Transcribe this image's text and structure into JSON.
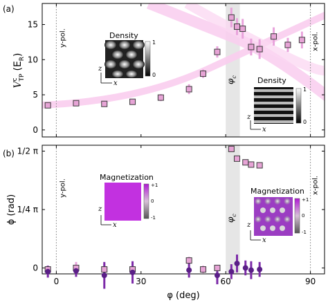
{
  "chart_data": [
    {
      "type": "scatter",
      "panel_label": "(a)",
      "xlim": [
        -5,
        95
      ],
      "ylim": [
        -1,
        18
      ],
      "yticks": [
        0,
        5,
        10,
        15
      ],
      "ylabel": "V",
      "ylabel_sup": "c",
      "ylabel_sub": "TP",
      "ylabel_unit_pre": "(E",
      "ylabel_unit_sub": "R",
      "ylabel_unit_post": ")",
      "vlines": [
        {
          "x": 0,
          "label": "y-pol."
        },
        {
          "x": 90,
          "label": "x-pol."
        }
      ],
      "critical_band": {
        "x0": 60,
        "x1": 65,
        "label": "φ",
        "label_sub": "c"
      },
      "series": [
        {
          "marker": "square",
          "x": [
            -3,
            7,
            17,
            27,
            37,
            47,
            52,
            57,
            62,
            64,
            66,
            69,
            72,
            77,
            82,
            87
          ],
          "y": [
            3.5,
            3.8,
            3.7,
            4.0,
            4.6,
            5.8,
            8.0,
            11.1,
            16.0,
            14.7,
            14.4,
            11.8,
            11.5,
            13.3,
            12.1,
            12.8
          ],
          "err": [
            0.3,
            0.3,
            0.3,
            0.3,
            0.5,
            0.7,
            0.6,
            0.8,
            1.4,
            1.2,
            1.4,
            1.2,
            1.4,
            1.3,
            1.0,
            1.2
          ]
        }
      ],
      "insets": [
        {
          "title": "Density",
          "cbar_max": "1",
          "cbar_min": "0",
          "axis_y": "z",
          "axis_x": "x"
        },
        {
          "title": "Density",
          "cbar_max": "1",
          "cbar_min": "0",
          "axis_y": "z",
          "axis_x": "x"
        }
      ]
    },
    {
      "type": "scatter",
      "panel_label": "(b)",
      "xlim": [
        -5,
        95
      ],
      "ylim": [
        -0.08,
        1.65
      ],
      "ytick_labels": [
        "0",
        "1/4 π",
        "1/2 π"
      ],
      "ylabel": "ϕ (rad)",
      "xlabel": "φ (deg)",
      "xticks": [
        0,
        30,
        60,
        90
      ],
      "vlines": [
        {
          "x": 0,
          "label": "y-pol."
        },
        {
          "x": 90,
          "label": "x-pol."
        }
      ],
      "critical_band": {
        "x0": 60,
        "x1": 65,
        "label": "φ",
        "label_sub": "c"
      },
      "series": [
        {
          "marker": "square",
          "x": [
            -3,
            7,
            17,
            27,
            47,
            52,
            57,
            62,
            64,
            67,
            69,
            72
          ],
          "y": [
            -0.02,
            0.0,
            -0.02,
            -0.02,
            0.1,
            -0.02,
            0.0,
            1.6,
            1.47,
            1.42,
            1.39,
            1.38
          ],
          "err": [
            0.05,
            0.08,
            0.08,
            0.05,
            0.05,
            0.05,
            0.04,
            0.03,
            0.03,
            0.03,
            0.03,
            0.04
          ]
        },
        {
          "marker": "circle",
          "x": [
            -3,
            7,
            17,
            27,
            47,
            57,
            62,
            64,
            67,
            69,
            72
          ],
          "y": [
            -0.05,
            -0.04,
            -0.1,
            -0.06,
            -0.03,
            -0.1,
            -0.05,
            0.06,
            0.0,
            -0.03,
            -0.02
          ],
          "err": [
            0.08,
            0.08,
            0.18,
            0.15,
            0.1,
            0.12,
            0.1,
            0.12,
            0.1,
            0.12,
            0.1
          ]
        }
      ],
      "insets": [
        {
          "title": "Magnetization",
          "cbar_max": "+1",
          "cbar_mid": "0",
          "cbar_min": "-1",
          "axis_y": "z",
          "axis_x": "x"
        },
        {
          "title": "Magnetization",
          "cbar_max": "+1",
          "cbar_mid": "0",
          "cbar_min": "-1",
          "axis_y": "z",
          "axis_x": "x"
        }
      ]
    }
  ],
  "colors": {
    "marker_fill": "#e7a4d6",
    "errbar_square": "#e9a3dc",
    "circle_fill": "#5a1f87",
    "errbar_circle": "#7c2aa8",
    "band": "#e6e6e6",
    "curve": "#f8c8ec",
    "magnetization": "#c231e0"
  }
}
